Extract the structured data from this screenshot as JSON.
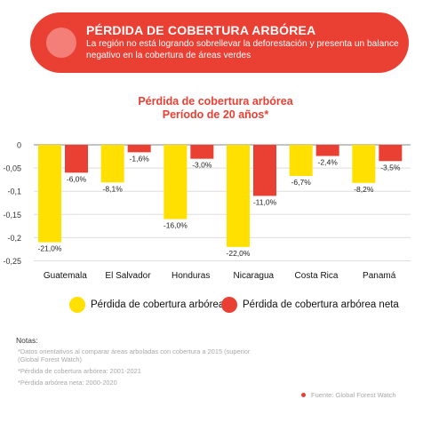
{
  "banner": {
    "title": "PÉRDIDA DE COBERTURA ARBÓREA",
    "subtitle": "La región no está logrando sobrellevar la deforestación y presenta un balance negativo en la cobertura de áreas verdes"
  },
  "colors": {
    "accent": "#ea3f33",
    "yellow": "#ffe000",
    "red": "#ea3f33"
  },
  "chart_data": {
    "type": "bar",
    "title": "Pérdida de cobertura arbórea",
    "subtitle": "Período de 20 años*",
    "categories": [
      "Guatemala",
      "El Salvador",
      "Honduras",
      "Nicaragua",
      "Costa Rica",
      "Panamá"
    ],
    "series": [
      {
        "name": "Pérdida de cobertura arbórea",
        "color": "#ffe000",
        "values": [
          -0.21,
          -0.081,
          -0.16,
          -0.22,
          -0.067,
          -0.082
        ],
        "labels": [
          "-21,0%",
          "-8,1%",
          "-16,0%",
          "-22,0%",
          "-6,7%",
          "-8,2%"
        ]
      },
      {
        "name": "Pérdida de cobertura arbórea neta",
        "color": "#ea3f33",
        "values": [
          -0.06,
          -0.016,
          -0.03,
          -0.11,
          -0.024,
          -0.035
        ],
        "labels": [
          "-6,0%",
          "-1,6%",
          "-3,0%",
          "-11,0%",
          "-2,4%",
          "-3,5%"
        ]
      }
    ],
    "ylim": [
      -0.25,
      0
    ],
    "yticks": [
      0,
      -0.05,
      -0.1,
      -0.15,
      -0.2,
      -0.25
    ],
    "ytick_labels": [
      "0",
      "-0,05",
      "-0,1",
      "-0,15",
      "-0,2",
      "-0,25"
    ],
    "grid": true,
    "legend_position": "bottom"
  },
  "notes": {
    "title": "Notas:",
    "lines": [
      "*Datos orientativos al comparar áreas arboladas con cobertura a 2015 (superior",
      "(Global Forest Watch)",
      "*Pérdida de cobertura arbórea: 2001-2021",
      "*Pérdida arbórea neta: 2000-2020"
    ]
  },
  "source": "Fuente: Global Forest Watch"
}
